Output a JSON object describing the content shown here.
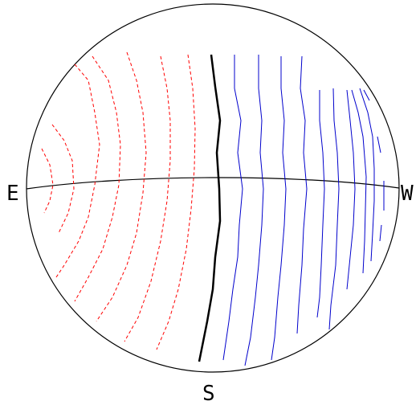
{
  "labels": {
    "east": "E",
    "west": "W",
    "south": "S"
  },
  "colors": {
    "outline": "#000000",
    "negative_contours": "#ff0000",
    "positive_contours": "#0000cc",
    "zero_contour": "#000000"
  },
  "diagram": {
    "type": "sky-projection contour map",
    "elements": [
      "projection-circle",
      "horizon-line",
      "negative-dashed-contours",
      "zero-contour",
      "positive-solid-contours"
    ]
  }
}
